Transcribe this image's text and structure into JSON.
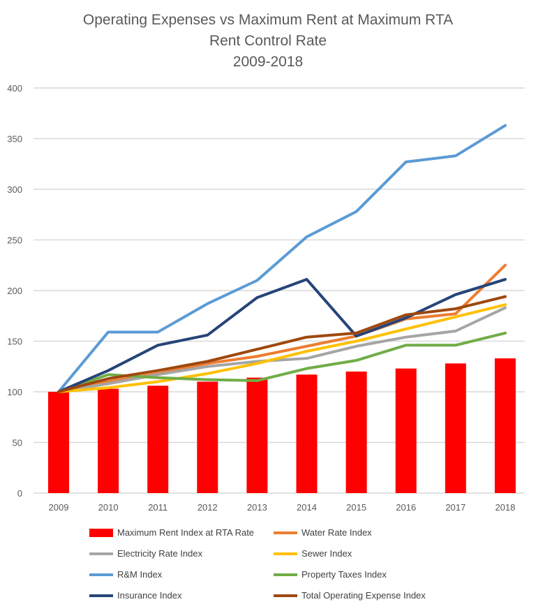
{
  "chart_data": {
    "type": "bar+line",
    "title": [
      "Operating Expenses vs Maximum Rent at Maximum RTA",
      "Rent Control Rate",
      "2009-2018"
    ],
    "xlabel": "",
    "ylabel": "",
    "ylim": [
      0,
      400
    ],
    "yticks": [
      0,
      50,
      100,
      150,
      200,
      250,
      300,
      350,
      400
    ],
    "grid": true,
    "legend_position": "bottom",
    "categories": [
      "2009",
      "2010",
      "2011",
      "2012",
      "2013",
      "2014",
      "2015",
      "2016",
      "2017",
      "2018"
    ],
    "series": [
      {
        "name": "Maximum Rent Index at RTA Rate",
        "kind": "bar",
        "color": "#ff0000",
        "values": [
          100,
          103,
          106,
          110,
          114,
          117,
          120,
          123,
          128,
          133
        ]
      },
      {
        "name": "Water Rate Index",
        "kind": "line",
        "color": "#ed7d31",
        "values": [
          100,
          110,
          118,
          128,
          135,
          145,
          155,
          172,
          177,
          225
        ]
      },
      {
        "name": "Electricity Rate Index",
        "kind": "line",
        "color": "#a5a5a5",
        "values": [
          100,
          108,
          117,
          125,
          130,
          133,
          145,
          154,
          160,
          183
        ]
      },
      {
        "name": "Sewer Index",
        "kind": "line",
        "color": "#ffc000",
        "values": [
          100,
          104,
          110,
          118,
          128,
          140,
          150,
          162,
          174,
          186
        ]
      },
      {
        "name": "R&M Index",
        "kind": "line",
        "color": "#5b9bd5",
        "values": [
          100,
          159,
          159,
          187,
          210,
          253,
          278,
          327,
          333,
          363
        ]
      },
      {
        "name": "Property Taxes Index",
        "kind": "line",
        "color": "#70ad47",
        "values": [
          100,
          117,
          114,
          112,
          111,
          123,
          131,
          146,
          146,
          158
        ]
      },
      {
        "name": "Insurance Index",
        "kind": "line",
        "color": "#264478",
        "values": [
          100,
          121,
          146,
          156,
          193,
          211,
          155,
          173,
          196,
          211
        ]
      },
      {
        "name": "Total Operating Expense Index",
        "kind": "line",
        "color": "#9e480e",
        "values": [
          100,
          113,
          121,
          130,
          142,
          154,
          158,
          176,
          182,
          194
        ]
      }
    ]
  }
}
